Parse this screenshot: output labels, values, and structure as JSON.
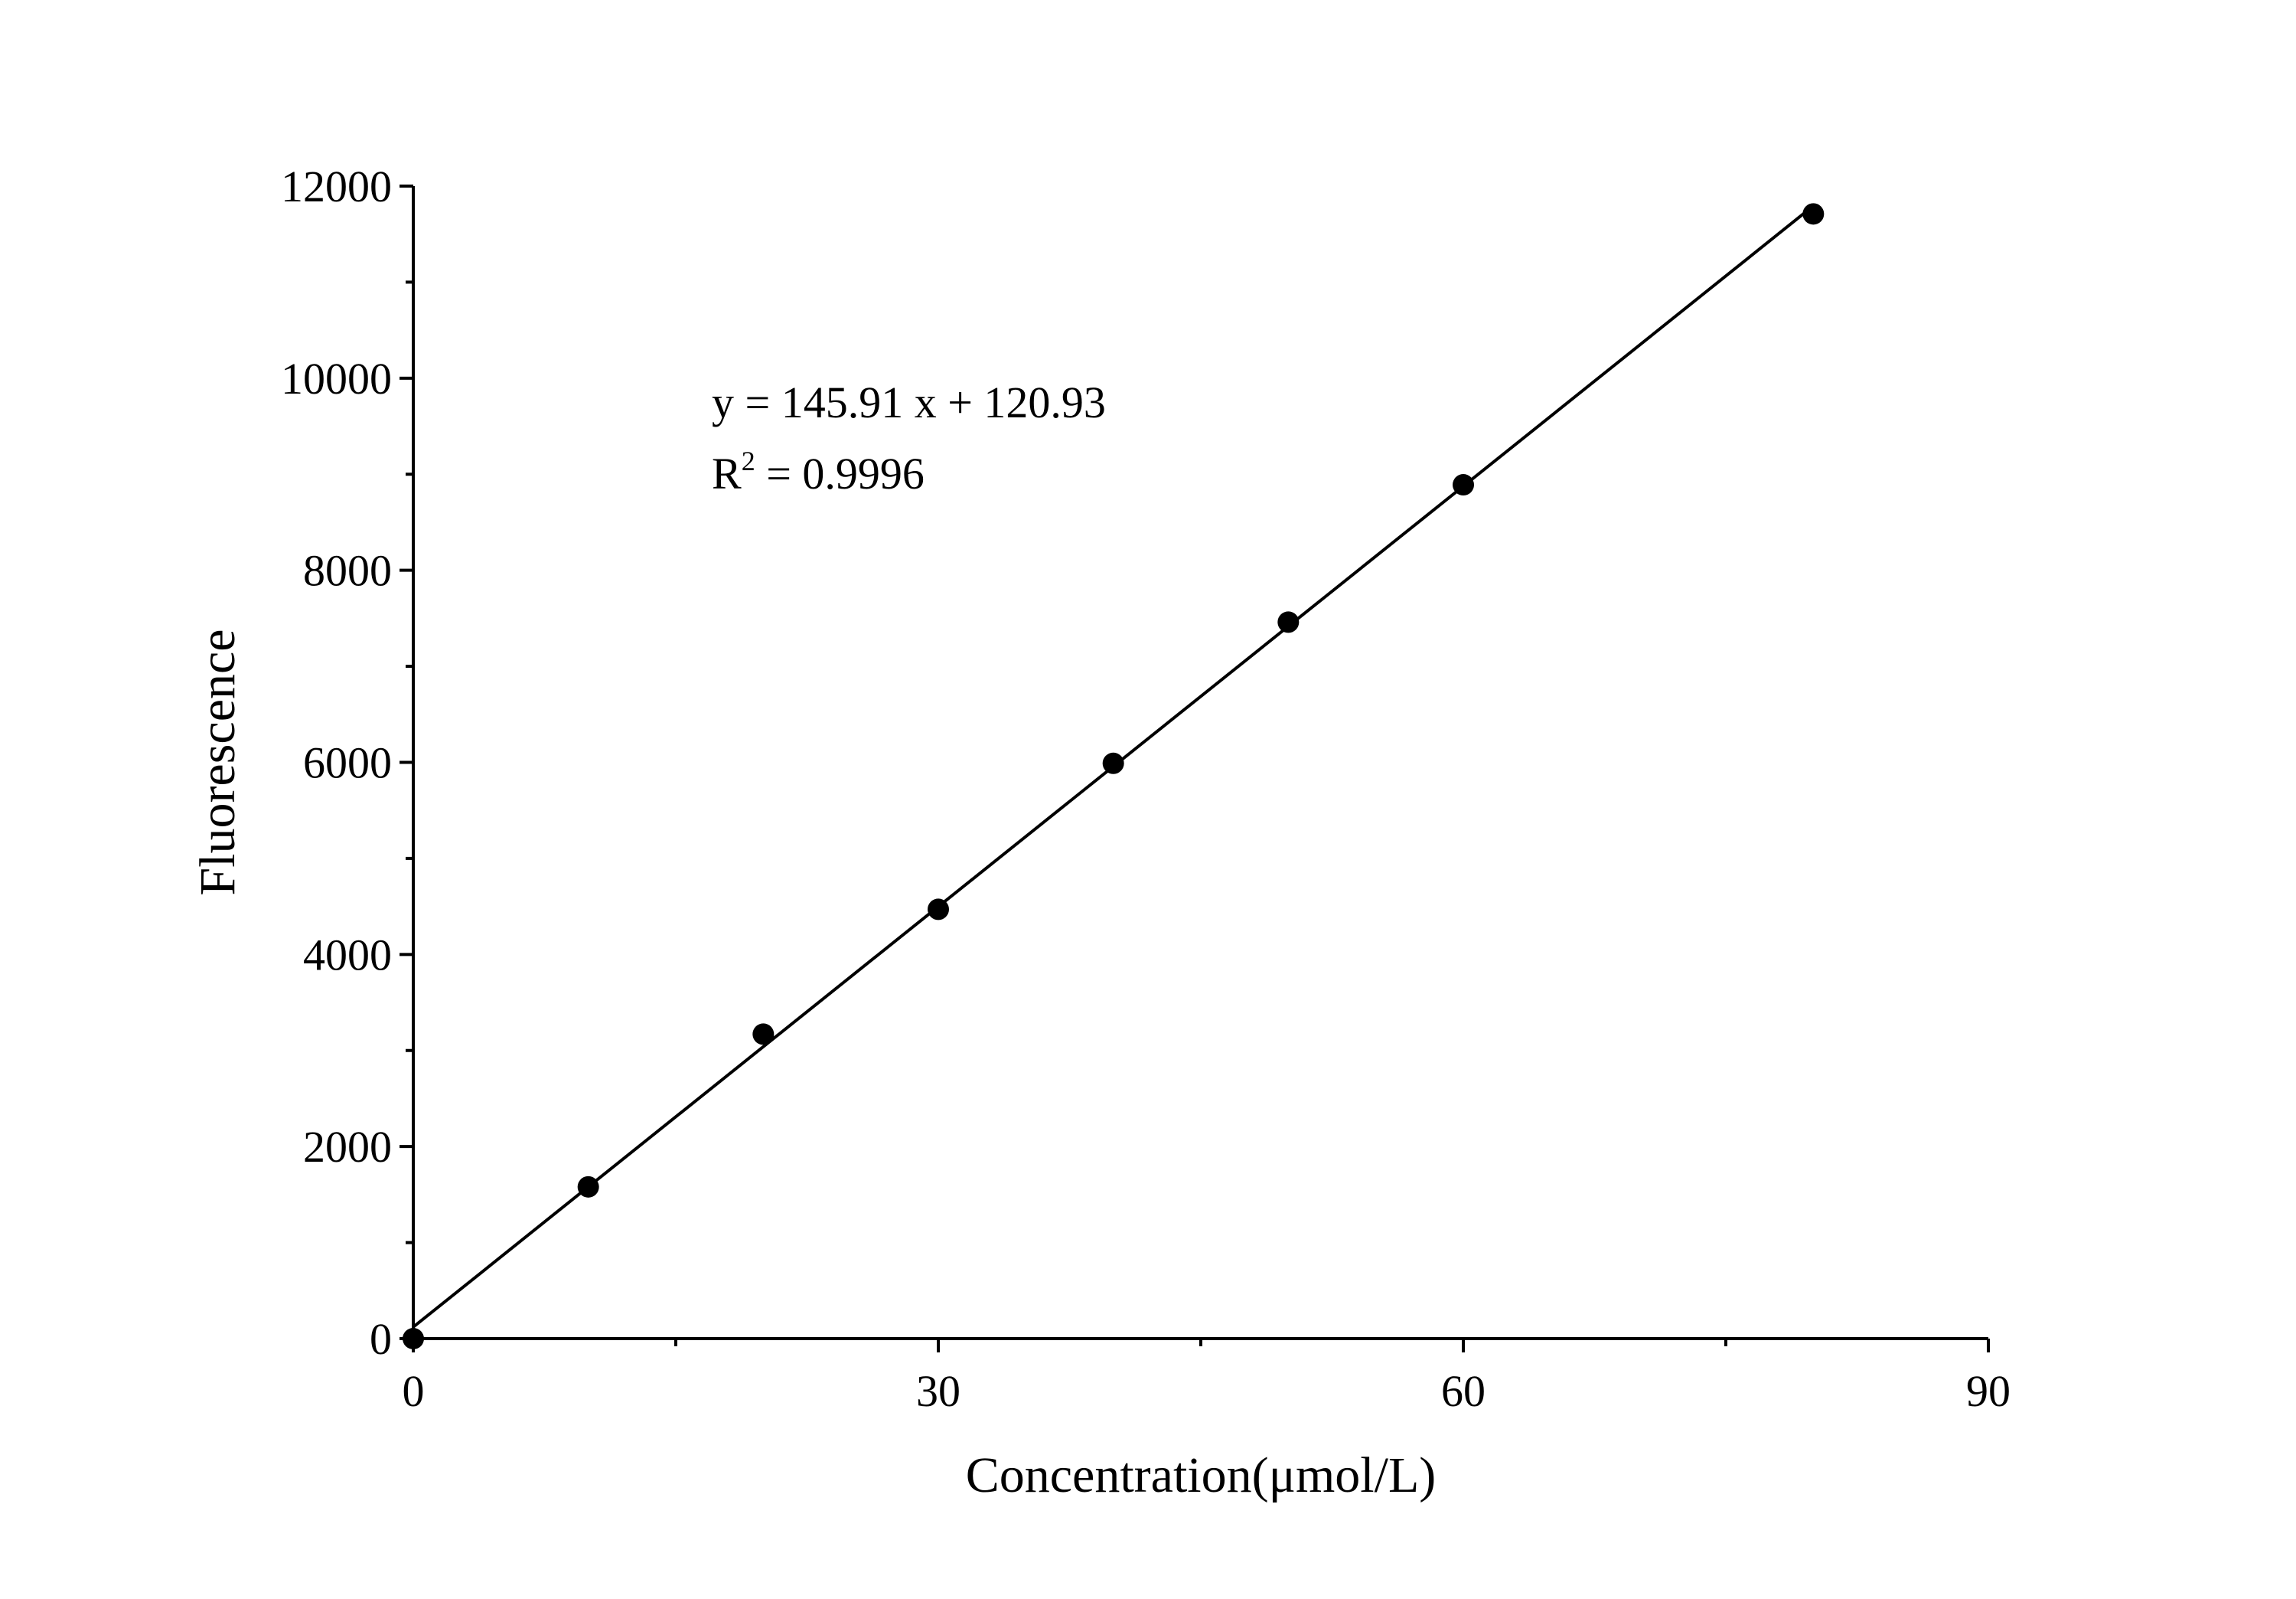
{
  "chart_data": {
    "type": "scatter",
    "xlabel": "Concentration(μmol/L)",
    "ylabel": "Fluorescence",
    "xlim": [
      0,
      90
    ],
    "ylim": [
      0,
      12000
    ],
    "x_ticks": [
      0,
      30,
      60,
      90
    ],
    "y_ticks": [
      0,
      2000,
      4000,
      6000,
      8000,
      10000,
      12000
    ],
    "x_tick_labels": [
      "0",
      "30",
      "60",
      "90"
    ],
    "y_tick_labels": [
      "0",
      "2000",
      "4000",
      "6000",
      "8000",
      "10000",
      "12000"
    ],
    "grid": false,
    "series": [
      {
        "points": [
          {
            "x": 0,
            "y": 0
          },
          {
            "x": 10,
            "y": 1580
          },
          {
            "x": 20,
            "y": 3170
          },
          {
            "x": 30,
            "y": 4470
          },
          {
            "x": 40,
            "y": 5990
          },
          {
            "x": 50,
            "y": 7460
          },
          {
            "x": 60,
            "y": 8890
          },
          {
            "x": 80,
            "y": 11710
          }
        ],
        "marker_color": "#000000"
      }
    ],
    "fit_line": {
      "slope": 145.91,
      "intercept": 120.93,
      "x_range": [
        0,
        80
      ],
      "color": "#000000"
    },
    "annotations": {
      "equation": "y = 145.91 x + 120.93",
      "r2_prefix": "R",
      "r2_sup": "2",
      "r2_value": " = 0.9996"
    }
  }
}
